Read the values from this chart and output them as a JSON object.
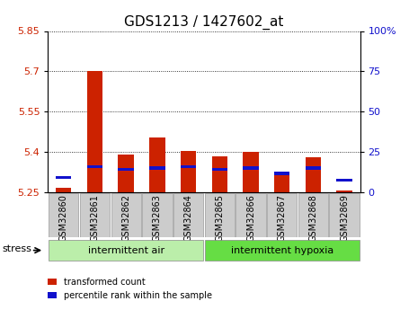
{
  "title": "GDS1213 / 1427602_at",
  "samples": [
    "GSM32860",
    "GSM32861",
    "GSM32862",
    "GSM32863",
    "GSM32864",
    "GSM32865",
    "GSM32866",
    "GSM32867",
    "GSM32868",
    "GSM32869"
  ],
  "red_values": [
    5.265,
    5.7,
    5.39,
    5.455,
    5.405,
    5.385,
    5.4,
    5.325,
    5.38,
    5.255
  ],
  "blue_values": [
    5.305,
    5.345,
    5.335,
    5.34,
    5.345,
    5.335,
    5.34,
    5.32,
    5.34,
    5.295
  ],
  "ymin": 5.25,
  "ymax": 5.85,
  "yticks": [
    5.25,
    5.4,
    5.55,
    5.7,
    5.85
  ],
  "ytick_labels": [
    "5.25",
    "5.4",
    "5.55",
    "5.7",
    "5.85"
  ],
  "right_yticks_pct": [
    0,
    25,
    50,
    75,
    100
  ],
  "right_ytick_labels": [
    "0",
    "25",
    "50",
    "75",
    "100%"
  ],
  "group1_label": "intermittent air",
  "group2_label": "intermittent hypoxia",
  "stress_label": "stress",
  "legend1": "transformed count",
  "legend2": "percentile rank within the sample",
  "red_color": "#cc2200",
  "blue_color": "#1111cc",
  "bar_width": 0.5,
  "group1_indices": [
    0,
    1,
    2,
    3,
    4
  ],
  "group2_indices": [
    5,
    6,
    7,
    8,
    9
  ],
  "bg_color_group1": "#bbeeaa",
  "bg_color_group2": "#66dd44",
  "tick_bg_color": "#cccccc",
  "grid_color": "#000000",
  "title_fontsize": 11,
  "axis_fontsize": 8,
  "tick_fontsize": 7,
  "label_fontsize": 8
}
